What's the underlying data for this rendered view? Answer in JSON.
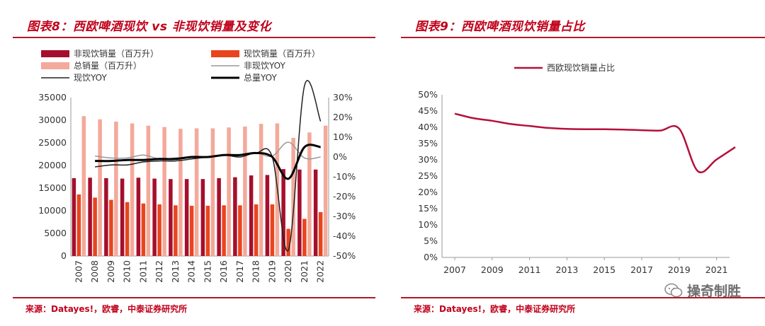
{
  "left": {
    "title": "图表8：西欧啤酒现饮 vs 非现饮销量及变化",
    "source": "来源：Datayes!，欧睿，中泰证券研究所"
  },
  "right": {
    "title": "图表9：西欧啤酒现饮销量占比",
    "source": "来源：Datayes!，欧睿，中泰证券研究所"
  },
  "watermark": {
    "text": "操奇制胜",
    "icon": "wechat-icon"
  },
  "colors": {
    "offtrade": "#a50f2d",
    "ontrade": "#e8451e",
    "total": "#f4a99a",
    "offtrade_yoy": "#999999",
    "ontrade_yoy": "#222222",
    "total_yoy": "#000000",
    "share_line": "#b5103a",
    "accent": "#c0001a"
  },
  "chart_data": [
    {
      "type": "bar",
      "categories": [
        "2007",
        "2008",
        "2009",
        "2010",
        "2011",
        "2012",
        "2013",
        "2014",
        "2015",
        "2016",
        "2017",
        "2018",
        "2019",
        "2020",
        "2021",
        "2022"
      ],
      "left_axis": {
        "ylim": [
          0,
          35000
        ],
        "ticks": [
          "0",
          "5000",
          "10000",
          "15000",
          "20000",
          "25000",
          "30000",
          "35000"
        ]
      },
      "right_axis": {
        "ylim": [
          -50,
          30
        ],
        "ticks": [
          "-50%",
          "-40%",
          "-30%",
          "-20%",
          "-10%",
          "0%",
          "10%",
          "20%",
          "30%"
        ]
      },
      "series": [
        {
          "name": "非现饮销量（百万升）",
          "type": "bar",
          "values": [
            17200,
            17300,
            17200,
            17100,
            17300,
            17100,
            17000,
            17000,
            17000,
            17200,
            17400,
            17800,
            17900,
            19200,
            19100,
            19100
          ]
        },
        {
          "name": "现饮销量（百万升）",
          "type": "bar",
          "values": [
            13600,
            12900,
            12400,
            11900,
            11600,
            11400,
            11200,
            11100,
            11100,
            11200,
            11200,
            11400,
            11400,
            6000,
            8200,
            9700
          ]
        },
        {
          "name": "总销量（百万升）",
          "type": "bar",
          "values": [
            30900,
            30200,
            29700,
            29300,
            28800,
            28500,
            28100,
            28200,
            28200,
            28400,
            28600,
            29200,
            29300,
            26100,
            27300,
            28800
          ]
        },
        {
          "name": "非现饮YOY",
          "type": "line",
          "axis": "right",
          "values": [
            null,
            0.5,
            -0.5,
            -0.5,
            1,
            -1,
            -0.5,
            0,
            0,
            1,
            1,
            2,
            0.5,
            7.5,
            -0.5,
            0
          ]
        },
        {
          "name": "现饮YOY",
          "type": "line",
          "axis": "right",
          "values": [
            null,
            -5,
            -4,
            -4,
            -2.5,
            -2,
            -2,
            -1,
            0,
            1,
            0,
            2,
            0,
            -47,
            36,
            18
          ]
        },
        {
          "name": "总量YOY",
          "type": "line",
          "axis": "right",
          "values": [
            null,
            -2,
            -2,
            -1.5,
            -1.5,
            -1,
            -1,
            0,
            0,
            1,
            1,
            2,
            0,
            -11,
            5,
            5
          ]
        }
      ]
    },
    {
      "type": "line",
      "legend": "西欧现饮销量占比",
      "x": [
        2007,
        2008,
        2009,
        2010,
        2011,
        2012,
        2013,
        2014,
        2015,
        2016,
        2017,
        2018,
        2019,
        2020,
        2021,
        2022
      ],
      "xticks": [
        "2007",
        "2009",
        "2011",
        "2013",
        "2015",
        "2017",
        "2019",
        "2021"
      ],
      "ylim": [
        0,
        50
      ],
      "yticks": [
        "0%",
        "5%",
        "10%",
        "15%",
        "20%",
        "25%",
        "30%",
        "35%",
        "40%",
        "45%",
        "50%"
      ],
      "series": [
        {
          "name": "西欧现饮销量占比",
          "values": [
            44.2,
            42.8,
            42.0,
            41.0,
            40.4,
            39.8,
            39.5,
            39.4,
            39.4,
            39.3,
            39.1,
            39.0,
            39.6,
            26.5,
            30.1,
            33.9
          ]
        }
      ]
    }
  ]
}
